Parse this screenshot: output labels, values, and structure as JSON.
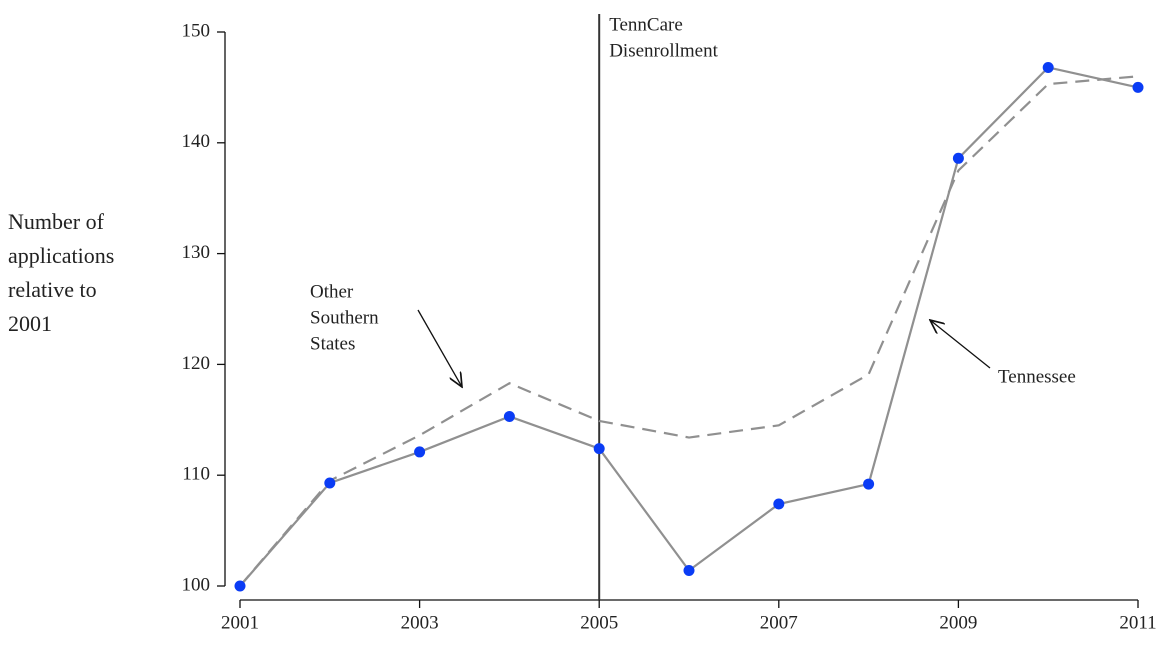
{
  "chart_data": {
    "type": "line",
    "y_label": [
      "Number of",
      "applications",
      "relative to",
      "2001"
    ],
    "x": [
      2001,
      2002,
      2003,
      2004,
      2005,
      2006,
      2007,
      2008,
      2009,
      2010,
      2011
    ],
    "series": [
      {
        "values": [
          100,
          109.3,
          112.1,
          115.3,
          112.4,
          101.4,
          107.4,
          109.2,
          138.6,
          146.8,
          145.0
        ],
        "color": "#909090",
        "marker_color": "#0a3cf5",
        "dashed": false
      },
      {
        "values": [
          100,
          109.5,
          113.6,
          118.3,
          114.9,
          113.4,
          114.5,
          119.1,
          137.5,
          145.3,
          146.0
        ],
        "color": "#909090",
        "dashed": true
      }
    ],
    "xlim": [
      2001,
      2011
    ],
    "xticks": [
      2001,
      2003,
      2005,
      2007,
      2009,
      2011
    ],
    "ylim": [
      100,
      150
    ],
    "yticks": [
      100,
      110,
      120,
      130,
      140,
      150
    ],
    "vline": {
      "x": 2005,
      "label": [
        "TennCare",
        "Disenrollment"
      ]
    },
    "annotations": [
      {
        "lines": [
          "Other",
          "Southern",
          "States"
        ]
      },
      {
        "lines": [
          "Tennessee"
        ]
      }
    ]
  }
}
